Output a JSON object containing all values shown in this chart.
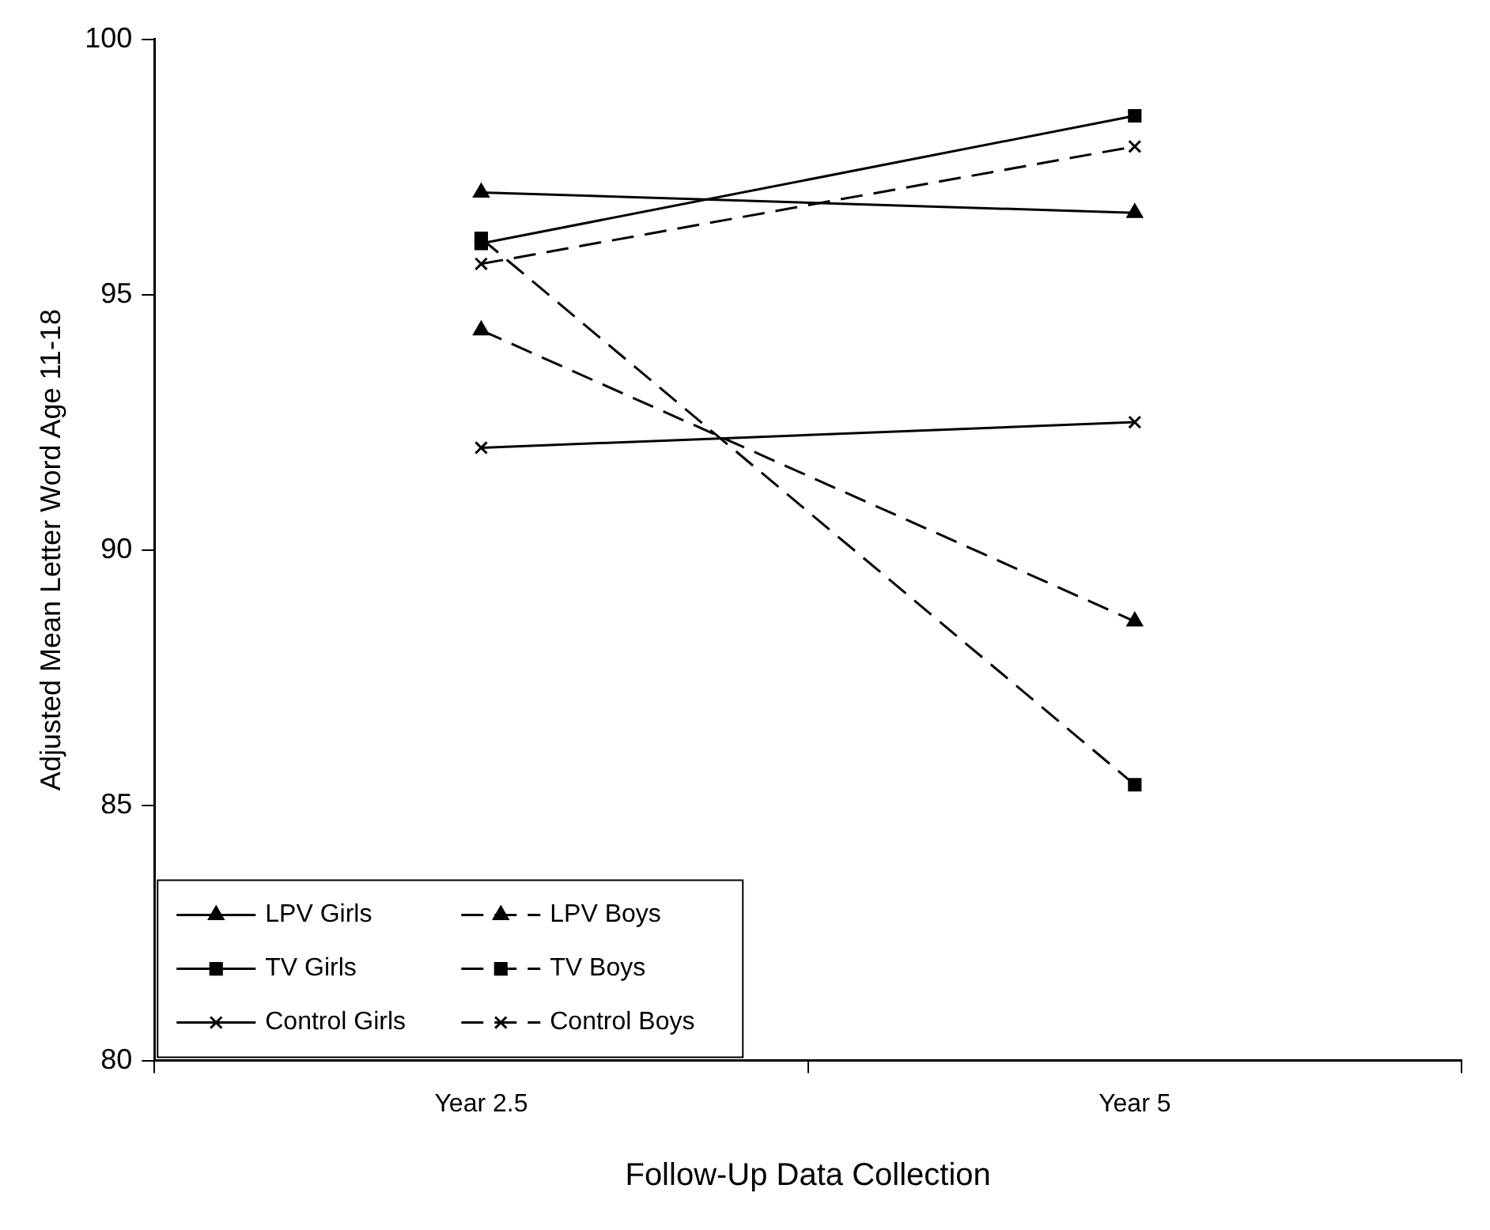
{
  "chart_data": {
    "type": "line",
    "xlabel": "Follow-Up Data Collection",
    "ylabel": "Adjusted Mean Letter Word Age 11-18",
    "categories": [
      "Year 2.5",
      "Year 5"
    ],
    "ylim": [
      80,
      100
    ],
    "yticks": [
      80,
      85,
      90,
      95,
      100
    ],
    "grid": false,
    "legend": "bottom left",
    "series": [
      {
        "name": "LPV Girls",
        "color": "#000000",
        "marker": "triangle",
        "line_style": "solid",
        "values": [
          97.0,
          96.6
        ]
      },
      {
        "name": "LPV Boys",
        "color": "#000000",
        "marker": "triangle",
        "line_style": "dashed",
        "values": [
          94.3,
          88.6
        ]
      },
      {
        "name": "TV Girls",
        "color": "#000000",
        "marker": "square",
        "line_style": "solid",
        "values": [
          96.0,
          98.5
        ]
      },
      {
        "name": "TV Boys",
        "color": "#000000",
        "marker": "square",
        "line_style": "dashed",
        "values": [
          96.1,
          85.4
        ]
      },
      {
        "name": "Control Girls",
        "color": "#000000",
        "marker": "cross",
        "line_style": "solid",
        "values": [
          92.0,
          92.5
        ]
      },
      {
        "name": "Control Boys",
        "color": "#000000",
        "marker": "cross",
        "line_style": "dashed",
        "values": [
          95.6,
          97.9
        ]
      }
    ]
  }
}
